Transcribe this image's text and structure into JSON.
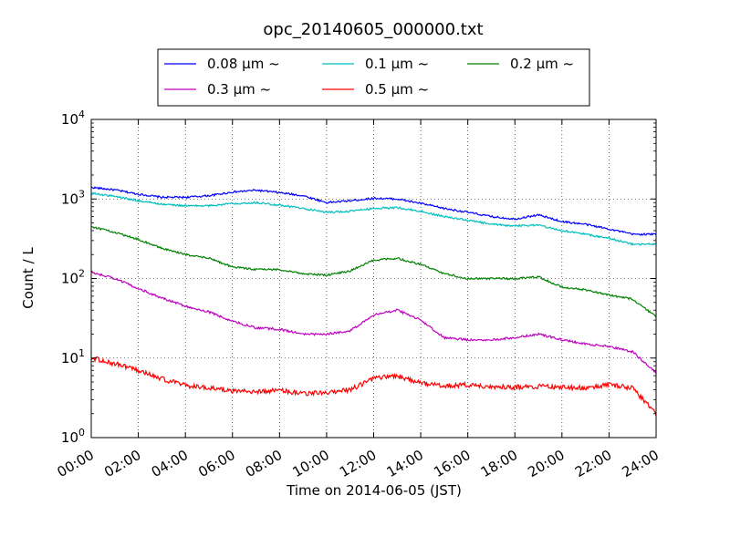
{
  "chart_data": {
    "type": "line",
    "title": "opc_20140605_000000.txt",
    "xlabel": "Time on 2014-06-05 (JST)",
    "ylabel": "Count / L",
    "x_range_hours": [
      0,
      24
    ],
    "x_ticks": [
      "00:00",
      "02:00",
      "04:00",
      "06:00",
      "08:00",
      "10:00",
      "12:00",
      "14:00",
      "16:00",
      "18:00",
      "20:00",
      "22:00",
      "24:00"
    ],
    "y_scale": "log",
    "ylim": [
      1,
      10000
    ],
    "y_ticks": [
      {
        "base": "10",
        "exp": "0"
      },
      {
        "base": "10",
        "exp": "1"
      },
      {
        "base": "10",
        "exp": "2"
      },
      {
        "base": "10",
        "exp": "3"
      },
      {
        "base": "10",
        "exp": "4"
      }
    ],
    "grid": true,
    "legend_position": "top",
    "series": [
      {
        "name": "0.08 μm ~",
        "color": "#0000ff",
        "x": [
          0,
          1,
          2,
          3,
          4,
          5,
          6,
          7,
          8,
          9,
          10,
          11,
          12,
          13,
          14,
          15,
          16,
          17,
          18,
          19,
          20,
          21,
          22,
          23,
          24
        ],
        "y": [
          1400,
          1300,
          1150,
          1050,
          1050,
          1100,
          1220,
          1290,
          1200,
          1100,
          900,
          950,
          1020,
          1000,
          880,
          760,
          680,
          600,
          560,
          630,
          520,
          480,
          420,
          360,
          360
        ]
      },
      {
        "name": "0.1 μm ~",
        "color": "#00bfbf",
        "x": [
          0,
          1,
          2,
          3,
          4,
          5,
          6,
          7,
          8,
          9,
          10,
          11,
          12,
          13,
          14,
          15,
          16,
          17,
          18,
          19,
          20,
          21,
          22,
          23,
          24
        ],
        "y": [
          1180,
          1080,
          950,
          860,
          820,
          820,
          880,
          900,
          840,
          760,
          680,
          700,
          760,
          780,
          700,
          600,
          540,
          480,
          460,
          470,
          400,
          360,
          320,
          270,
          270
        ]
      },
      {
        "name": "0.2 μm ~",
        "color": "#008000",
        "x": [
          0,
          1,
          2,
          3,
          4,
          5,
          6,
          7,
          8,
          9,
          10,
          11,
          12,
          13,
          14,
          15,
          16,
          17,
          18,
          19,
          20,
          21,
          22,
          23,
          24
        ],
        "y": [
          450,
          380,
          310,
          240,
          200,
          180,
          140,
          130,
          130,
          115,
          110,
          125,
          170,
          180,
          150,
          115,
          100,
          100,
          100,
          105,
          78,
          72,
          62,
          55,
          33
        ]
      },
      {
        "name": "0.3 μm ~",
        "color": "#bf00bf",
        "x": [
          0,
          1,
          2,
          3,
          4,
          5,
          6,
          7,
          8,
          9,
          10,
          11,
          12,
          13,
          14,
          15,
          16,
          17,
          18,
          19,
          20,
          21,
          22,
          23,
          24
        ],
        "y": [
          120,
          100,
          75,
          57,
          45,
          38,
          29,
          24,
          23,
          20,
          20,
          22,
          35,
          40,
          30,
          18,
          17,
          17,
          18,
          20,
          17,
          15,
          14,
          12,
          6.5
        ]
      },
      {
        "name": "0.5 μm ~",
        "color": "#ff0000",
        "x": [
          0,
          1,
          2,
          3,
          4,
          5,
          6,
          7,
          8,
          9,
          10,
          11,
          12,
          13,
          14,
          15,
          16,
          17,
          18,
          19,
          20,
          21,
          22,
          23,
          24
        ],
        "y": [
          10,
          8.5,
          7,
          5.5,
          4.5,
          4.2,
          3.8,
          3.8,
          3.9,
          3.6,
          3.7,
          4.0,
          5.5,
          6.0,
          4.8,
          4.5,
          4.6,
          4.4,
          4.3,
          4.4,
          4.3,
          4.2,
          4.6,
          4.2,
          2.0
        ]
      }
    ]
  }
}
